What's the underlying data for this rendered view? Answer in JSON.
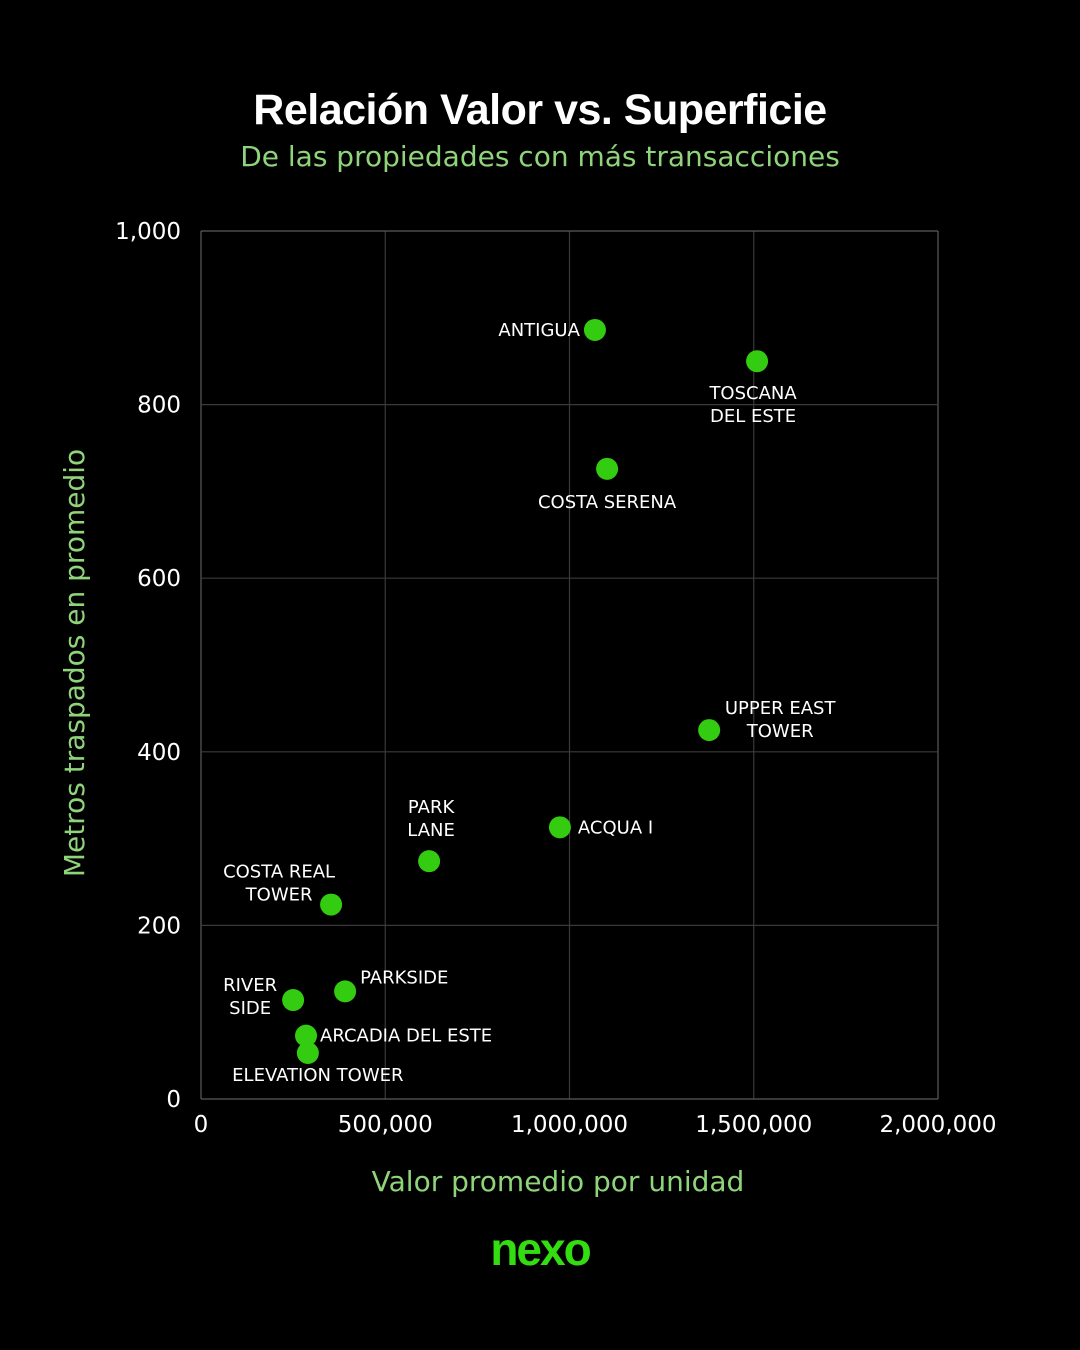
{
  "header": {
    "title": "Relación Valor vs. Superficie",
    "subtitle": "De las propiedades con más transacciones"
  },
  "brand": {
    "logo_text": "nexo"
  },
  "colors": {
    "point": "#33cc11",
    "accent": "#8fd47a",
    "grid": "#3a3a3a",
    "background": "#000000"
  },
  "chart_data": {
    "type": "scatter",
    "title": "Relación Valor vs. Superficie",
    "subtitle": "De las propiedades con más transacciones",
    "xlabel": "Valor promedio por unidad",
    "ylabel": "Metros traspados en promedio",
    "xlim": [
      0,
      2000000
    ],
    "ylim": [
      0,
      1000
    ],
    "xticks": [
      0,
      500000,
      1000000,
      1500000,
      2000000
    ],
    "xtick_labels": [
      "0",
      "500,000",
      "1,000,000",
      "1,500,000",
      "2,000,000"
    ],
    "yticks": [
      0,
      200,
      400,
      600,
      800,
      1000
    ],
    "ytick_labels": [
      "0",
      "200",
      "400",
      "600",
      "800",
      "1,000"
    ],
    "grid": true,
    "points": [
      {
        "name": "ANTIGUA",
        "lines": [
          "ANTIGUA"
        ],
        "x": 1069000,
        "y": 886,
        "label_pos": "left"
      },
      {
        "name": "TOSCANA DEL ESTE",
        "lines": [
          "TOSCANA",
          "DEL ESTE"
        ],
        "x": 1509000,
        "y": 850,
        "label_pos": "below"
      },
      {
        "name": "COSTA SERENA",
        "lines": [
          "COSTA SERENA"
        ],
        "x": 1102000,
        "y": 726,
        "label_pos": "below"
      },
      {
        "name": "UPPER EAST TOWER",
        "lines": [
          "UPPER EAST",
          "TOWER"
        ],
        "x": 1379000,
        "y": 425,
        "label_pos": "right"
      },
      {
        "name": "ACQUA I",
        "lines": [
          "ACQUA I"
        ],
        "x": 974000,
        "y": 313,
        "label_pos": "right"
      },
      {
        "name": "PARK LANE",
        "lines": [
          "PARK",
          "LANE"
        ],
        "x": 619000,
        "y": 274,
        "label_pos": "above"
      },
      {
        "name": "COSTA REAL TOWER",
        "lines": [
          "COSTA REAL",
          "TOWER"
        ],
        "x": 353000,
        "y": 224,
        "label_pos": "upper-left"
      },
      {
        "name": "PARKSIDE",
        "lines": [
          "PARKSIDE"
        ],
        "x": 391000,
        "y": 124,
        "label_pos": "upper-right"
      },
      {
        "name": "RIVER SIDE",
        "lines": [
          "RIVER",
          "SIDE"
        ],
        "x": 250000,
        "y": 114,
        "label_pos": "left"
      },
      {
        "name": "ARCADIA DEL ESTE",
        "lines": [
          "ARCADIA DEL ESTE"
        ],
        "x": 285000,
        "y": 73,
        "label_pos": "right"
      },
      {
        "name": "ELEVATION TOWER",
        "lines": [
          "ELEVATION TOWER"
        ],
        "x": 290000,
        "y": 53,
        "label_pos": "below"
      }
    ]
  }
}
